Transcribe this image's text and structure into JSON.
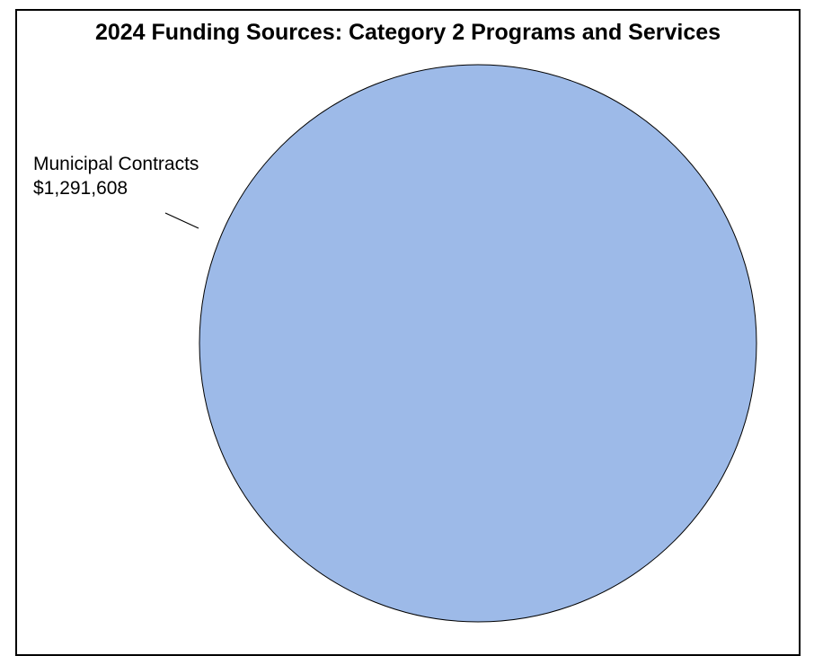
{
  "chart_data": {
    "type": "pie",
    "title": "2024 Funding Sources: Category 2 Programs and Services",
    "slices": [
      {
        "label": "Municipal Contracts",
        "value": 1291608,
        "value_label": "$1,291,608",
        "color": "#9dbae8"
      }
    ],
    "legend": "none",
    "outline_color": "#000000"
  }
}
